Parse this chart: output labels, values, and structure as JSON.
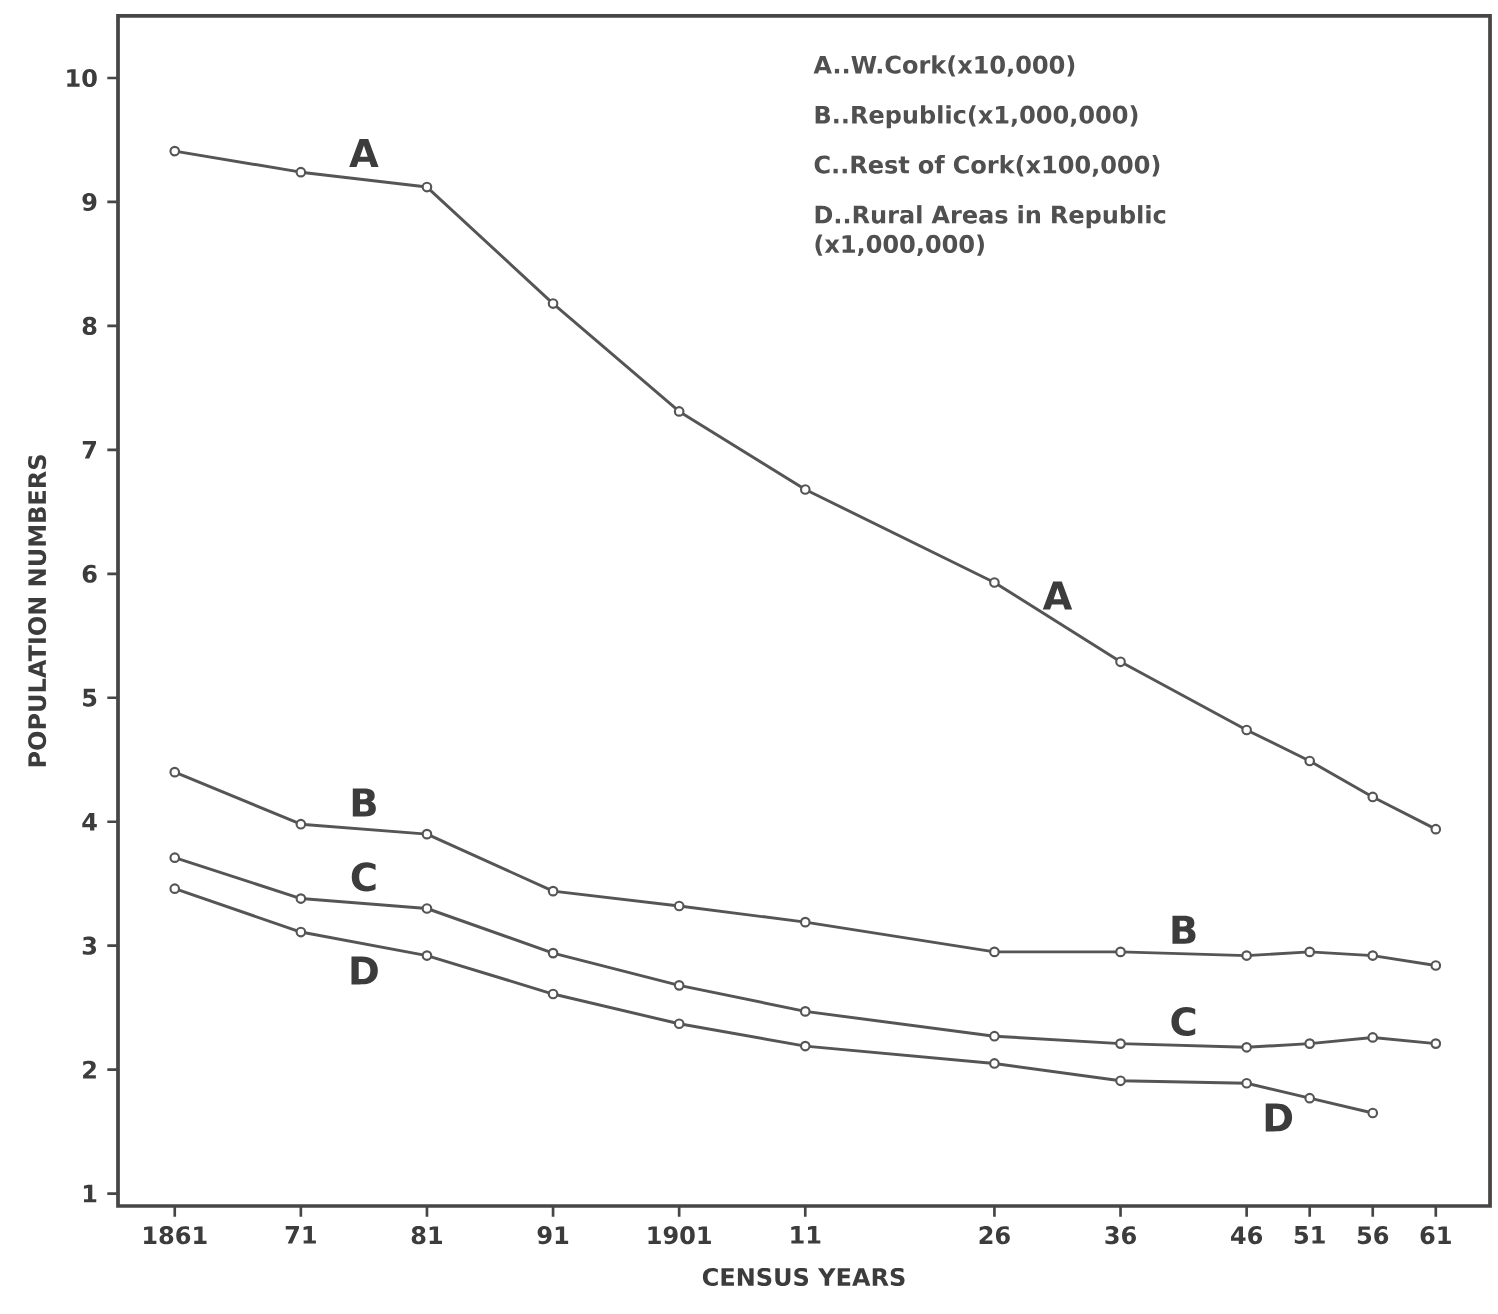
{
  "chart_data": {
    "type": "line",
    "xlabel": "CENSUS YEARS",
    "ylabel": "POPULATION NUMBERS",
    "x": [
      1861,
      1871,
      1881,
      1891,
      1901,
      1911,
      1926,
      1936,
      1946,
      1951,
      1956,
      1961
    ],
    "series": [
      {
        "name": "A",
        "color": "#555555",
        "values": [
          9.41,
          9.24,
          9.12,
          8.18,
          7.31,
          6.68,
          5.93,
          5.29,
          4.74,
          4.49,
          4.2,
          3.94
        ]
      },
      {
        "name": "B",
        "color": "#555555",
        "values": [
          4.4,
          3.98,
          3.9,
          3.44,
          3.32,
          3.19,
          2.95,
          2.95,
          2.92,
          2.95,
          2.92,
          2.84
        ]
      },
      {
        "name": "C",
        "color": "#555555",
        "values": [
          3.71,
          3.38,
          3.3,
          2.94,
          2.68,
          2.47,
          2.27,
          2.21,
          2.18,
          2.21,
          2.26,
          2.21
        ]
      },
      {
        "name": "D",
        "color": "#555555",
        "values": [
          3.46,
          3.11,
          2.92,
          2.61,
          2.37,
          2.19,
          2.05,
          1.91,
          1.89,
          1.77,
          1.65,
          null
        ]
      }
    ],
    "marker": "circle",
    "line_style": "solid",
    "xlim": [
      1856.5,
      1965.3
    ],
    "ylim": [
      0.9,
      10.5
    ],
    "xticks": [
      1861,
      {
        "value": 1871,
        "label": "71"
      },
      {
        "value": 1881,
        "label": "81"
      },
      {
        "value": 1891,
        "label": "91"
      },
      1901,
      {
        "value": 1911,
        "label": "11"
      },
      {
        "value": 1926,
        "label": "26"
      },
      {
        "value": 1936,
        "label": "36"
      },
      {
        "value": 1946,
        "label": "46"
      },
      {
        "value": 1951,
        "label": "51"
      },
      {
        "value": 1956,
        "label": "56"
      },
      {
        "value": 1961,
        "label": "61"
      }
    ],
    "yticks": [
      1,
      2,
      3,
      4,
      5,
      6,
      7,
      8,
      9,
      10
    ],
    "annotations": [
      "A..W.Cork(x10,000)",
      "B..Republic(x1,000,000)",
      "C..Rest of Cork(x100,000)",
      "D..Rural Areas in Republic (x1,000,000)"
    ]
  }
}
